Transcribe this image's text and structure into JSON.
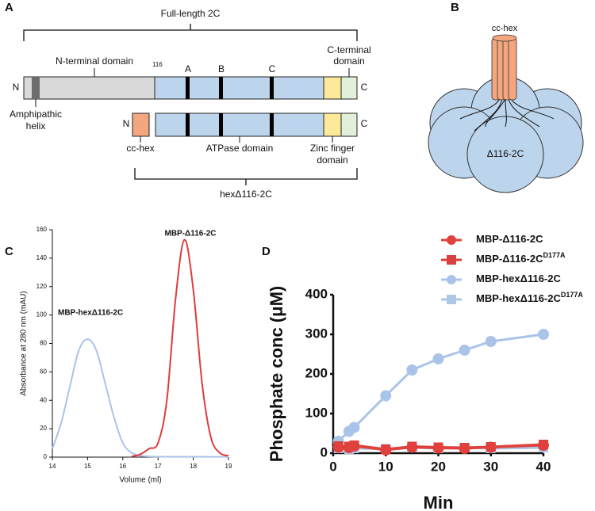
{
  "panel_a": {
    "label": "A",
    "full_length": "Full-length 2C",
    "n_terminal_domain": "N-terminal domain",
    "residue": "116",
    "motifs": [
      "A",
      "B",
      "C"
    ],
    "c_terminal_domain": [
      "C-terminal",
      "domain"
    ],
    "n_end": "N",
    "c_end": "C",
    "amphipathic_helix": [
      "Amphipathic",
      "helix"
    ],
    "cc_hex": "cc-hex",
    "atpase_domain": "ATPase domain",
    "zinc_finger_domain": [
      "Zinc finger",
      "domain"
    ],
    "construct": "hexΔ116-2C"
  },
  "panel_b": {
    "label": "B",
    "cc_hex": "cc-hex",
    "core": "Δ116-2C"
  },
  "chart_data": [
    {
      "type": "line",
      "label": "C",
      "xlabel": "Volume (ml)",
      "ylabel": "Absorbance at 280 nm (mAU)",
      "x": [
        14,
        14.25,
        14.5,
        14.75,
        15,
        15.25,
        15.5,
        15.75,
        16,
        16.25,
        16.5,
        16.75,
        17,
        17.25,
        17.5,
        17.75,
        18,
        18.25,
        18.5,
        18.75,
        19
      ],
      "xlim": [
        14,
        19
      ],
      "xticks": [
        14,
        15,
        16,
        17,
        18,
        19
      ],
      "ylim": [
        0,
        160
      ],
      "yticks": [
        0,
        20,
        40,
        60,
        80,
        100,
        120,
        140,
        160
      ],
      "series": [
        {
          "name": "MBP-hexΔ116-2C",
          "color": "#a9c4e8",
          "values": [
            6,
            24,
            50,
            75,
            83,
            75,
            52,
            28,
            10,
            3,
            1,
            0.5,
            0.3,
            0.2,
            0.2,
            0.2,
            0.2,
            0.2,
            0.2,
            0.2,
            0.2
          ]
        },
        {
          "name": "MBP-Δ116-2C",
          "color": "#e03c3c",
          "values": [
            null,
            null,
            null,
            null,
            null,
            null,
            null,
            null,
            null,
            0.5,
            2,
            6,
            10,
            40,
            112,
            153,
            118,
            52,
            14,
            3,
            1
          ]
        }
      ]
    },
    {
      "type": "line-marker",
      "label": "D",
      "xlabel": "Min",
      "ylabel": "Phosphate conc (μM)",
      "x": [
        1,
        3,
        4,
        10,
        15,
        20,
        25,
        30,
        40
      ],
      "xlim": [
        0,
        40
      ],
      "xticks": [
        0,
        10,
        20,
        30,
        40
      ],
      "ylim": [
        0,
        400
      ],
      "yticks": [
        0,
        100,
        200,
        300,
        400
      ],
      "series": [
        {
          "name": "MBP-Δ116-2C",
          "color": "#e0413c",
          "marker": "circle",
          "values": [
            15,
            14,
            18,
            8,
            15,
            13,
            12,
            15,
            20
          ]
        },
        {
          "name": "MBP-Δ116-2C",
          "superscript": "D177A",
          "color": "#d94040",
          "marker": "square",
          "values": [
            18,
            17,
            20,
            10,
            17,
            15,
            14,
            16,
            22
          ]
        },
        {
          "name": "MBP-hexΔ116-2C",
          "color": "#a9c4e8",
          "marker": "circle",
          "values": [
            30,
            55,
            65,
            145,
            210,
            238,
            260,
            282,
            300
          ]
        },
        {
          "name": "MBP-hexΔ116-2C",
          "superscript": "D177A",
          "color": "#aec6e8",
          "marker": "square",
          "values": [
            12,
            10,
            12,
            11,
            14,
            12,
            14,
            12,
            14
          ]
        }
      ]
    }
  ]
}
